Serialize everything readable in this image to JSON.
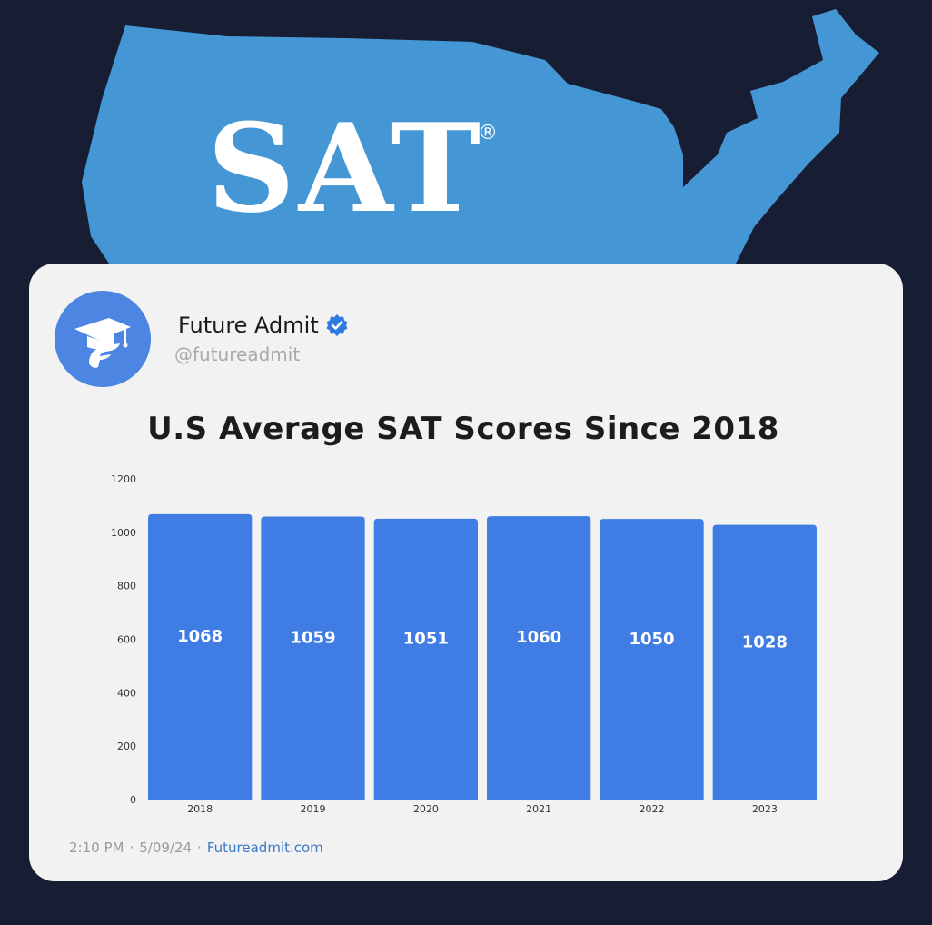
{
  "logo": {
    "text": "SAT",
    "mark": "®"
  },
  "profile": {
    "name": "Future Admit",
    "handle": "@futureadmit",
    "avatar_icon": "graduation-cap-icon",
    "verified_icon": "verified-badge-icon"
  },
  "colors": {
    "background": "#171d33",
    "map": "#4496d4",
    "card": "#f2f2f2",
    "bar": "#3f7de4",
    "link": "#3b78c4"
  },
  "chart_data": {
    "type": "bar",
    "title": "U.S Average SAT Scores Since 2018",
    "categories": [
      "2018",
      "2019",
      "2020",
      "2021",
      "2022",
      "2023"
    ],
    "values": [
      1068,
      1059,
      1051,
      1060,
      1050,
      1028
    ],
    "data_labels": [
      "1068",
      "1059",
      "1051",
      "1060",
      "1050",
      "1028"
    ],
    "y_ticks": [
      "0",
      "200",
      "400",
      "600",
      "800",
      "1000",
      "1200"
    ],
    "ylim": [
      0,
      1200
    ],
    "xlabel": "",
    "ylabel": "",
    "grid": false,
    "legend": "none"
  },
  "footer": {
    "time": "2:10 PM",
    "separator": "·",
    "date": "5/09/24",
    "link_separator": "·",
    "link": "Futureadmit.com"
  }
}
